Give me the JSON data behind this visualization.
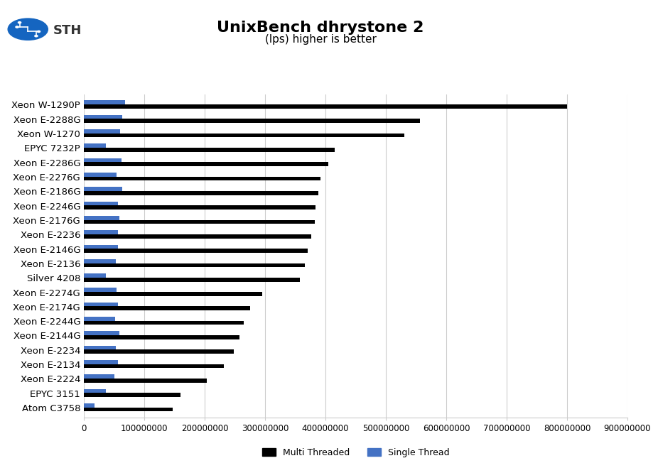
{
  "title": "UnixBench dhrystone 2",
  "subtitle": "(lps) higher is better",
  "categories": [
    "Xeon W-1290P",
    "Xeon E-2288G",
    "Xeon W-1270",
    "EPYC 7232P",
    "Xeon E-2286G",
    "Xeon E-2276G",
    "Xeon E-2186G",
    "Xeon E-2246G",
    "Xeon E-2176G",
    "Xeon E-2236",
    "Xeon E-2146G",
    "Xeon E-2136",
    "Silver 4208",
    "Xeon E-2274G",
    "Xeon E-2174G",
    "Xeon E-2244G",
    "Xeon E-2144G",
    "Xeon E-2234",
    "Xeon E-2134",
    "Xeon E-2224",
    "EPYC 3151",
    "Atom C3758"
  ],
  "multi_threaded": [
    800000000,
    557000000,
    530000000,
    415000000,
    405000000,
    392000000,
    388000000,
    383000000,
    382000000,
    376000000,
    370000000,
    366000000,
    358000000,
    295000000,
    275000000,
    265000000,
    258000000,
    248000000,
    232000000,
    204000000,
    160000000,
    147000000
  ],
  "single_threaded": [
    68000000,
    63000000,
    60000000,
    37000000,
    62000000,
    54000000,
    64000000,
    56000000,
    59000000,
    56000000,
    56000000,
    53000000,
    37000000,
    54000000,
    56000000,
    52000000,
    59000000,
    53000000,
    57000000,
    51000000,
    37000000,
    18000000
  ],
  "multi_color": "#000000",
  "single_color": "#4472c4",
  "background_color": "#ffffff",
  "xlim": [
    0,
    900000000
  ],
  "xticks": [
    0,
    100000000,
    200000000,
    300000000,
    400000000,
    500000000,
    600000000,
    700000000,
    800000000,
    900000000
  ],
  "title_fontsize": 16,
  "subtitle_fontsize": 11,
  "label_fontsize": 9.5
}
